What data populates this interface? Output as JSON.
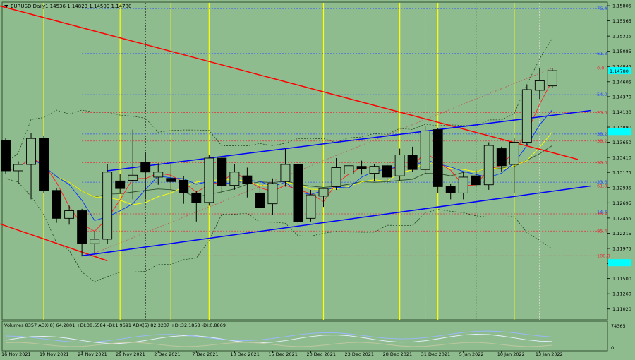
{
  "header": {
    "symbol": "EURUSD,Daily",
    "ohlc": "1.14536 1.14823 1.14509 1.14780"
  },
  "indicator_label": "Volumes 8357  ADX(8) 64.2801 +DI:38.5584 -DI:1.9691  ADX(5) 82.3237 +DI:32.1858 -DI:0.8869",
  "colors": {
    "background": "#8fbc8f",
    "channel": "#0000ff",
    "trend": "#ff0000",
    "bull_body": "#8fbc8f",
    "bear_body": "#000000",
    "price_tag": "#00ffff",
    "separator_yellow": "#ffff00"
  },
  "chart_data": {
    "type": "candlestick",
    "symbol": "EURUSD",
    "timeframe": "Daily",
    "ylim": [
      1.1085,
      1.1585
    ],
    "y_ticks": [
      "1.15805",
      "1.15565",
      "1.15325",
      "1.15085",
      "1.14845",
      "1.14605",
      "1.14370",
      "1.14130",
      "1.13890",
      "1.13650",
      "1.13410",
      "1.13175",
      "1.12935",
      "1.12695",
      "1.12455",
      "1.12215",
      "1.11975",
      "1.11735",
      "1.11500",
      "1.11260",
      "1.11020"
    ],
    "x_labels": [
      "16 Nov 2021",
      "19 Nov 2021",
      "24 Nov 2021",
      "29 Nov 2021",
      "2 Dec 2021",
      "7 Dec 2021",
      "10 Dec 2021",
      "15 Dec 2021",
      "20 Dec 2021",
      "23 Dec 2021",
      "28 Dec 2021",
      "31 Dec 2021",
      "5 Jan 2022",
      "10 Jan 2022",
      "13 Jan 2022"
    ],
    "x_label_index": [
      0,
      3,
      6,
      9,
      12,
      15,
      18,
      21,
      24,
      27,
      30,
      33,
      36,
      39,
      42
    ],
    "candles": [
      {
        "o": 1.1368,
        "h": 1.1372,
        "l": 1.1315,
        "c": 1.132
      },
      {
        "o": 1.132,
        "h": 1.1335,
        "l": 1.13,
        "c": 1.133
      },
      {
        "o": 1.133,
        "h": 1.138,
        "l": 1.1275,
        "c": 1.1371
      },
      {
        "o": 1.1371,
        "h": 1.1375,
        "l": 1.1285,
        "c": 1.1289
      },
      {
        "o": 1.1289,
        "h": 1.1293,
        "l": 1.1238,
        "c": 1.1245
      },
      {
        "o": 1.1245,
        "h": 1.1265,
        "l": 1.1235,
        "c": 1.1257
      },
      {
        "o": 1.1257,
        "h": 1.126,
        "l": 1.1185,
        "c": 1.1205
      },
      {
        "o": 1.1205,
        "h": 1.1225,
        "l": 1.119,
        "c": 1.1212
      },
      {
        "o": 1.1212,
        "h": 1.133,
        "l": 1.1205,
        "c": 1.1318
      },
      {
        "o": 1.1304,
        "h": 1.1315,
        "l": 1.1285,
        "c": 1.1292
      },
      {
        "o": 1.1305,
        "h": 1.1385,
        "l": 1.1275,
        "c": 1.1313
      },
      {
        "o": 1.1333,
        "h": 1.135,
        "l": 1.1275,
        "c": 1.1318
      },
      {
        "o": 1.131,
        "h": 1.1332,
        "l": 1.1298,
        "c": 1.1318
      },
      {
        "o": 1.1308,
        "h": 1.133,
        "l": 1.129,
        "c": 1.1303
      },
      {
        "o": 1.1305,
        "h": 1.1312,
        "l": 1.1268,
        "c": 1.1285
      },
      {
        "o": 1.1285,
        "h": 1.1288,
        "l": 1.124,
        "c": 1.127
      },
      {
        "o": 1.127,
        "h": 1.1345,
        "l": 1.1265,
        "c": 1.134
      },
      {
        "o": 1.134,
        "h": 1.1342,
        "l": 1.1285,
        "c": 1.1297
      },
      {
        "o": 1.1297,
        "h": 1.133,
        "l": 1.129,
        "c": 1.1318
      },
      {
        "o": 1.1312,
        "h": 1.1325,
        "l": 1.1278,
        "c": 1.13
      },
      {
        "o": 1.1285,
        "h": 1.13,
        "l": 1.1262,
        "c": 1.1262
      },
      {
        "o": 1.1268,
        "h": 1.1308,
        "l": 1.125,
        "c": 1.13
      },
      {
        "o": 1.1303,
        "h": 1.1355,
        "l": 1.1295,
        "c": 1.133
      },
      {
        "o": 1.133,
        "h": 1.1335,
        "l": 1.1235,
        "c": 1.124
      },
      {
        "o": 1.1245,
        "h": 1.129,
        "l": 1.124,
        "c": 1.1282
      },
      {
        "o": 1.128,
        "h": 1.1293,
        "l": 1.1263,
        "c": 1.1292
      },
      {
        "o": 1.1295,
        "h": 1.134,
        "l": 1.129,
        "c": 1.1325
      },
      {
        "o": 1.1315,
        "h": 1.1337,
        "l": 1.131,
        "c": 1.1328
      },
      {
        "o": 1.1327,
        "h": 1.1336,
        "l": 1.1314,
        "c": 1.1323
      },
      {
        "o": 1.1316,
        "h": 1.133,
        "l": 1.1303,
        "c": 1.1327
      },
      {
        "o": 1.1328,
        "h": 1.1332,
        "l": 1.13,
        "c": 1.131
      },
      {
        "o": 1.1312,
        "h": 1.1355,
        "l": 1.1305,
        "c": 1.1345
      },
      {
        "o": 1.1345,
        "h": 1.1358,
        "l": 1.1318,
        "c": 1.1322
      },
      {
        "o": 1.1322,
        "h": 1.139,
        "l": 1.1315,
        "c": 1.1383
      },
      {
        "o": 1.1385,
        "h": 1.1388,
        "l": 1.1285,
        "c": 1.1295
      },
      {
        "o": 1.1295,
        "h": 1.13,
        "l": 1.1275,
        "c": 1.1285
      },
      {
        "o": 1.1285,
        "h": 1.1318,
        "l": 1.1275,
        "c": 1.131
      },
      {
        "o": 1.1312,
        "h": 1.132,
        "l": 1.1295,
        "c": 1.1298
      },
      {
        "o": 1.1298,
        "h": 1.1365,
        "l": 1.129,
        "c": 1.136
      },
      {
        "o": 1.1355,
        "h": 1.1358,
        "l": 1.1318,
        "c": 1.1328
      },
      {
        "o": 1.133,
        "h": 1.1372,
        "l": 1.1285,
        "c": 1.1365
      },
      {
        "o": 1.1365,
        "h": 1.1455,
        "l": 1.136,
        "c": 1.1448
      },
      {
        "o": 1.1447,
        "h": 1.1482,
        "l": 1.1433,
        "c": 1.1462
      },
      {
        "o": 1.1454,
        "h": 1.1482,
        "l": 1.1451,
        "c": 1.1478
      }
    ],
    "fib_levels": [
      {
        "label": "76.4",
        "price": 1.1576,
        "color": "#2a4bff"
      },
      {
        "label": "61.8",
        "price": 1.1505,
        "color": "#2a4bff"
      },
      {
        "label": "0.0",
        "price": 1.1482,
        "color": "#e0303a"
      },
      {
        "label": "54.0",
        "price": 1.144,
        "color": "#2a4bff"
      },
      {
        "label": "23.6",
        "price": 1.1412,
        "color": "#e0303a"
      },
      {
        "label": "38.2",
        "price": 1.1378,
        "color": "#2a4bff"
      },
      {
        "label": "38.2",
        "price": 1.1367,
        "color": "#e0303a"
      },
      {
        "label": "50.0",
        "price": 1.1333,
        "color": "#e0303a"
      },
      {
        "label": "23.6",
        "price": 1.1302,
        "color": "#2a4bff"
      },
      {
        "label": "61.8",
        "price": 1.1296,
        "color": "#e0303a"
      },
      {
        "label": "14.6",
        "price": 1.1255,
        "color": "#2a4bff"
      },
      {
        "label": "76.4",
        "price": 1.1252,
        "color": "#e0303a"
      },
      {
        "label": "85.4",
        "price": 1.1225,
        "color": "#e0303a"
      },
      {
        "label": "100.0",
        "price": 1.1186,
        "color": "#e0303a"
      }
    ],
    "price_tags": [
      {
        "price": 1.1478,
        "label": "1.14780",
        "emph": true
      },
      {
        "price": 1.1382,
        "label": "",
        "emph": false
      },
      {
        "price": 1.1175,
        "label": "",
        "emph": false
      }
    ],
    "separators_yellow": [
      3,
      9,
      13,
      16,
      25,
      31,
      34,
      40
    ],
    "separators_black": [
      11,
      37
    ],
    "separators_white": [
      33,
      42
    ],
    "channel_upper": [
      [
        8,
        1.132
      ],
      [
        46,
        1.1415
      ]
    ],
    "channel_lower": [
      [
        6,
        1.1186
      ],
      [
        46,
        1.1296
      ]
    ],
    "red_trend_main": [
      [
        -1,
        1.1583
      ],
      [
        45,
        1.1338
      ]
    ],
    "red_trend_short": [
      [
        -1,
        1.124
      ],
      [
        8,
        1.1178
      ]
    ],
    "volume_axis_labels": [
      "74365",
      "0"
    ]
  }
}
